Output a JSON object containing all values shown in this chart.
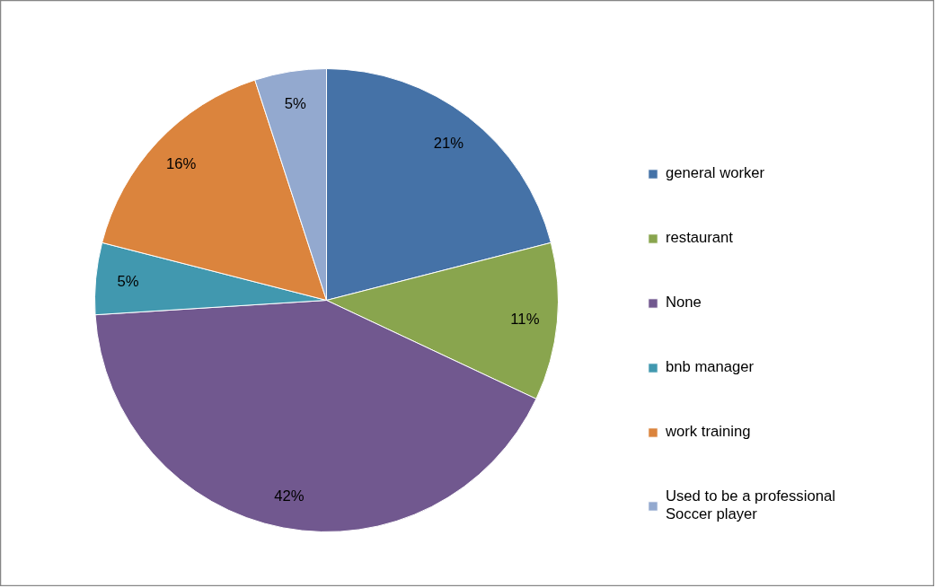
{
  "chart_data": {
    "type": "pie",
    "categories": [
      "general worker",
      "restaurant",
      "None",
      "bnb manager",
      "work training",
      "Used to be a professional Soccer player"
    ],
    "values": [
      21,
      11,
      42,
      5,
      16,
      5
    ],
    "colors": [
      "#4572a7",
      "#89a54e",
      "#71588f",
      "#4198af",
      "#db843d",
      "#93a9cf"
    ],
    "value_labels": [
      "21%",
      "11%",
      "42%",
      "5%",
      "16%",
      "5%"
    ],
    "legend": "right"
  }
}
